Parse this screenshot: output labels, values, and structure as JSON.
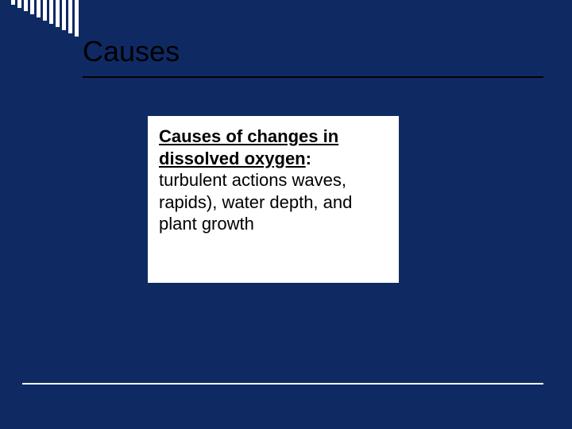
{
  "colors": {
    "slide_bg": "#0f2a63",
    "title_text": "#000000",
    "title_rule": "#000000",
    "footer_rule": "#ffffff",
    "box_bg": "#ffffff",
    "box_text": "#000000",
    "comb_teeth": "#ffffff"
  },
  "title": "Causes",
  "content": {
    "heading": "Causes of changes in dissolved oxygen",
    "heading_suffix": ":",
    "body": "turbulent actions waves, rapids), water depth, and plant growth"
  },
  "comb": {
    "count": 11,
    "base_height": 6,
    "step": 4,
    "tooth_width": 5,
    "gap": 3
  }
}
